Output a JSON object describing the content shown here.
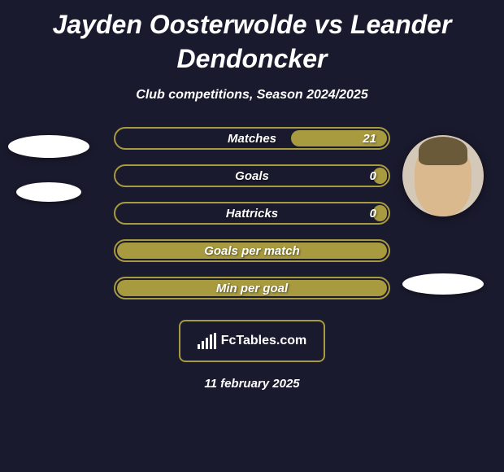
{
  "title": "Jayden Oosterwolde vs Leander Dendoncker",
  "subtitle": "Club competitions, Season 2024/2025",
  "date": "11 february 2025",
  "logo_text": "FcTables.com",
  "colors": {
    "background": "#1a1a2e",
    "accent": "#a89a3e",
    "text": "#ffffff"
  },
  "stats": [
    {
      "label": "Matches",
      "right_value": "21",
      "fill_pct": 35
    },
    {
      "label": "Goals",
      "right_value": "0",
      "fill_pct": 5
    },
    {
      "label": "Hattricks",
      "right_value": "0",
      "fill_pct": 5
    },
    {
      "label": "Goals per match",
      "right_value": "",
      "fill_pct": 100
    },
    {
      "label": "Min per goal",
      "right_value": "",
      "fill_pct": 100
    }
  ]
}
